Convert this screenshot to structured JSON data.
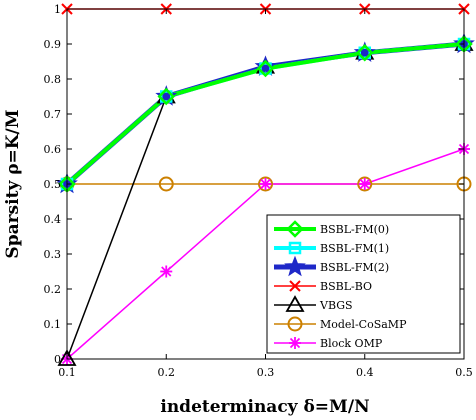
{
  "chart_data": {
    "type": "line",
    "title": "",
    "xlabel": "indeterminacy δ=M/N",
    "ylabel": "Sparsity ρ=K/M",
    "x": [
      0.1,
      0.2,
      0.3,
      0.4,
      0.5
    ],
    "xlim": [
      0.1,
      0.5
    ],
    "ylim": [
      0,
      1
    ],
    "xticks": [
      "0.1",
      "0.2",
      "0.3",
      "0.4",
      "0.5"
    ],
    "yticks": [
      "0",
      "0.1",
      "0.2",
      "0.3",
      "0.4",
      "0.5",
      "0.6",
      "0.7",
      "0.8",
      "0.9",
      "1"
    ],
    "grid": false,
    "legend_position": "bottom-right",
    "series": [
      {
        "name": "BSBL-FM(0)",
        "color": "#00ff00",
        "marker": "diamond",
        "values": [
          0.5,
          0.75,
          0.83,
          0.875,
          0.9
        ]
      },
      {
        "name": "BSBL-FM(1)",
        "color": "#00ffff",
        "marker": "square",
        "values": [
          0.5,
          0.75,
          0.83,
          0.875,
          0.9
        ]
      },
      {
        "name": "BSBL-FM(2)",
        "color": "#1e28c8",
        "marker": "star",
        "values": [
          0.5,
          0.75,
          0.835,
          0.875,
          0.9
        ]
      },
      {
        "name": "BSBL-BO",
        "color": "#ff0000",
        "marker": "x",
        "values": [
          1,
          1,
          1,
          1,
          1
        ]
      },
      {
        "name": "VBGS",
        "color": "#000000",
        "marker": "triangle",
        "values": [
          0,
          0.75,
          0.835,
          0.875,
          0.9
        ]
      },
      {
        "name": "Model-CoSaMP",
        "color": "#cc8000",
        "marker": "circle",
        "values": [
          0.5,
          0.5,
          0.5,
          0.5,
          0.5
        ]
      },
      {
        "name": "Block OMP",
        "color": "#ff00ff",
        "marker": "asterisk",
        "values": [
          0,
          0.25,
          0.5,
          0.5,
          0.6
        ]
      }
    ]
  }
}
